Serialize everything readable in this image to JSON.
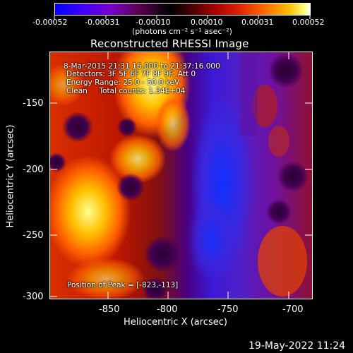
{
  "colorbar": {
    "tick_labels": [
      "-0.00052",
      "-0.00031",
      "-0.00010",
      "0.00010",
      "0.00031",
      "0.00052"
    ],
    "units_label": "(photons cm⁻² s⁻¹ asec⁻²)"
  },
  "plot": {
    "title": "Reconstructed RHESSI Image",
    "xlabel": "Heliocentric X (arcsec)",
    "ylabel": "Heliocentric Y (arcsec)",
    "x_ticks": [
      "-850",
      "-800",
      "-750",
      "-700"
    ],
    "y_ticks": [
      "-150",
      "-200",
      "-250",
      "-300"
    ]
  },
  "info": {
    "time_range": "8-Mar-2015 21:31:16.000 to 21:37:16.000",
    "detectors": "Detectors: 3F 5F 6F 7F 8F 9F, Att 0",
    "energy": "Energy Range: 25.0 - 50.0 keV",
    "clean": "Clean     Total counts: 1.34E+04",
    "peak": "Position of Peak = [-823,-113]"
  },
  "footer": {
    "timestamp": "19-May-2022 11:24"
  }
}
